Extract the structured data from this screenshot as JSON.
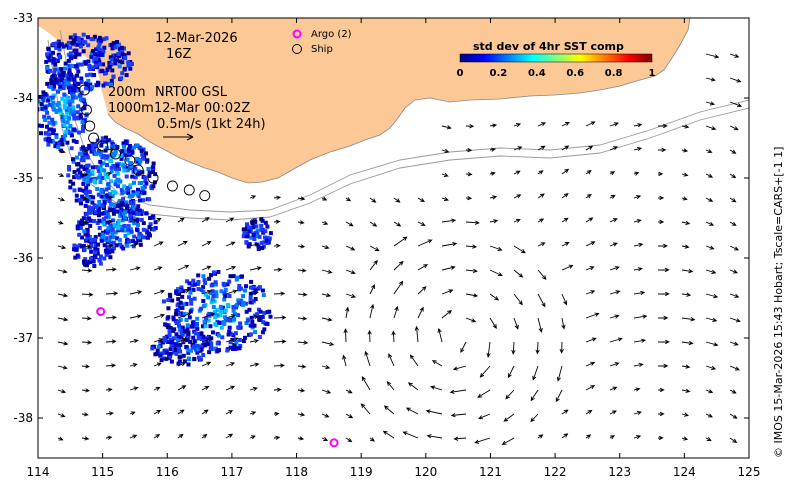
{
  "map": {
    "date_line": "12-Mar-2026",
    "hour_line": "16Z",
    "depth_line_1": "200m",
    "depth_line_2": "1000m",
    "model_line": "NRT00 GSL",
    "model_time": "12-Mar 00:02Z",
    "scale_label": "0.5m/s (1kt 24h)",
    "credit": "© IMOS 15-Mar-2026 15:43 Hobart; Tscale=CARS+[-1 1]"
  },
  "legend": {
    "argo_label": "Argo (2)",
    "ship_label": "Ship",
    "argo_color": "#ff00ff"
  },
  "colorbar": {
    "title": "std dev of 4hr SST comp",
    "ticks": [
      "0",
      "0.2",
      "0.4",
      "0.6",
      "0.8",
      "1"
    ],
    "colors": [
      "#00007f",
      "#0000ff",
      "#007fff",
      "#00ffff",
      "#7fff7f",
      "#ffff00",
      "#ff7f00",
      "#ff0000",
      "#7f0000"
    ]
  },
  "axes": {
    "x_ticks": [
      "114",
      "115",
      "116",
      "117",
      "118",
      "119",
      "120",
      "121",
      "122",
      "123",
      "124",
      "125"
    ],
    "y_ticks": [
      "-33",
      "-34",
      "-35",
      "-36",
      "-37",
      "-38"
    ],
    "lon_range": [
      114,
      125
    ],
    "lat_range": [
      -38.5,
      -33
    ]
  },
  "colors": {
    "land": "#fbc896",
    "coast": "#888888",
    "arrow": "#000000"
  },
  "argo_floats": [
    {
      "lon": 114.97,
      "lat": -36.67
    },
    {
      "lon": 118.58,
      "lat": -38.31
    }
  ],
  "ship_track": [
    {
      "lon": 114.72,
      "lat": -33.9
    },
    {
      "lon": 114.75,
      "lat": -34.15
    },
    {
      "lon": 114.8,
      "lat": -34.35
    },
    {
      "lon": 114.86,
      "lat": -34.5
    },
    {
      "lon": 115.0,
      "lat": -34.6
    },
    {
      "lon": 115.2,
      "lat": -34.7
    },
    {
      "lon": 115.42,
      "lat": -34.78
    },
    {
      "lon": 115.55,
      "lat": -34.9
    },
    {
      "lon": 115.78,
      "lat": -35.0
    },
    {
      "lon": 116.08,
      "lat": -35.1
    },
    {
      "lon": 116.34,
      "lat": -35.15
    },
    {
      "lon": 116.58,
      "lat": -35.22
    }
  ]
}
